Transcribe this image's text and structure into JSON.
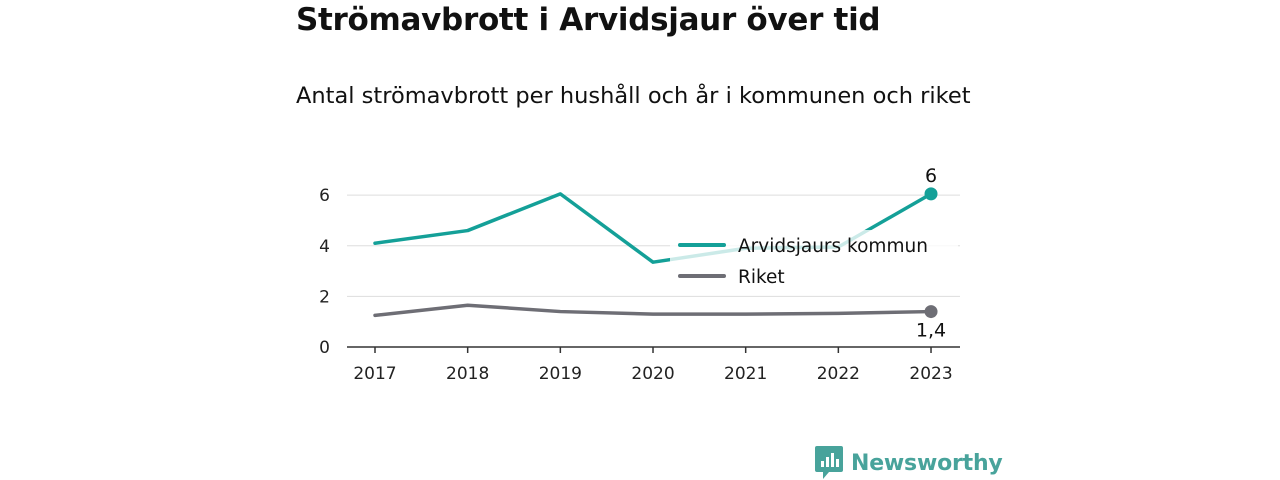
{
  "header": {
    "title": "Strömavbrott i Arvidsjaur över tid",
    "subtitle": "Antal strömavbrott per hushåll och år i kommunen och riket"
  },
  "brand": {
    "name": "Newsworthy",
    "color": "#48a39b"
  },
  "chart_data": {
    "type": "line",
    "title": "Strömavbrott i Arvidsjaur över tid",
    "subtitle": "Antal strömavbrott per hushåll och år i kommunen och riket",
    "xlabel": "",
    "ylabel": "",
    "categories": [
      "2017",
      "2018",
      "2019",
      "2020",
      "2021",
      "2022",
      "2023"
    ],
    "ylim": [
      0,
      6.4
    ],
    "yticks": [
      0,
      2,
      4,
      6
    ],
    "ytick_labels": [
      "0",
      "2",
      "4",
      "6"
    ],
    "grid": true,
    "legend_position": "center-right",
    "series": [
      {
        "name": "Arvidsjaurs kommun",
        "color": "#14a098",
        "values": [
          4.1,
          4.6,
          6.05,
          3.35,
          3.9,
          3.95,
          6.05
        ],
        "end_label": "6"
      },
      {
        "name": "Riket",
        "color": "#6e6e75",
        "values": [
          1.25,
          1.65,
          1.4,
          1.3,
          1.3,
          1.33,
          1.4
        ],
        "end_label": "1,4"
      }
    ]
  }
}
